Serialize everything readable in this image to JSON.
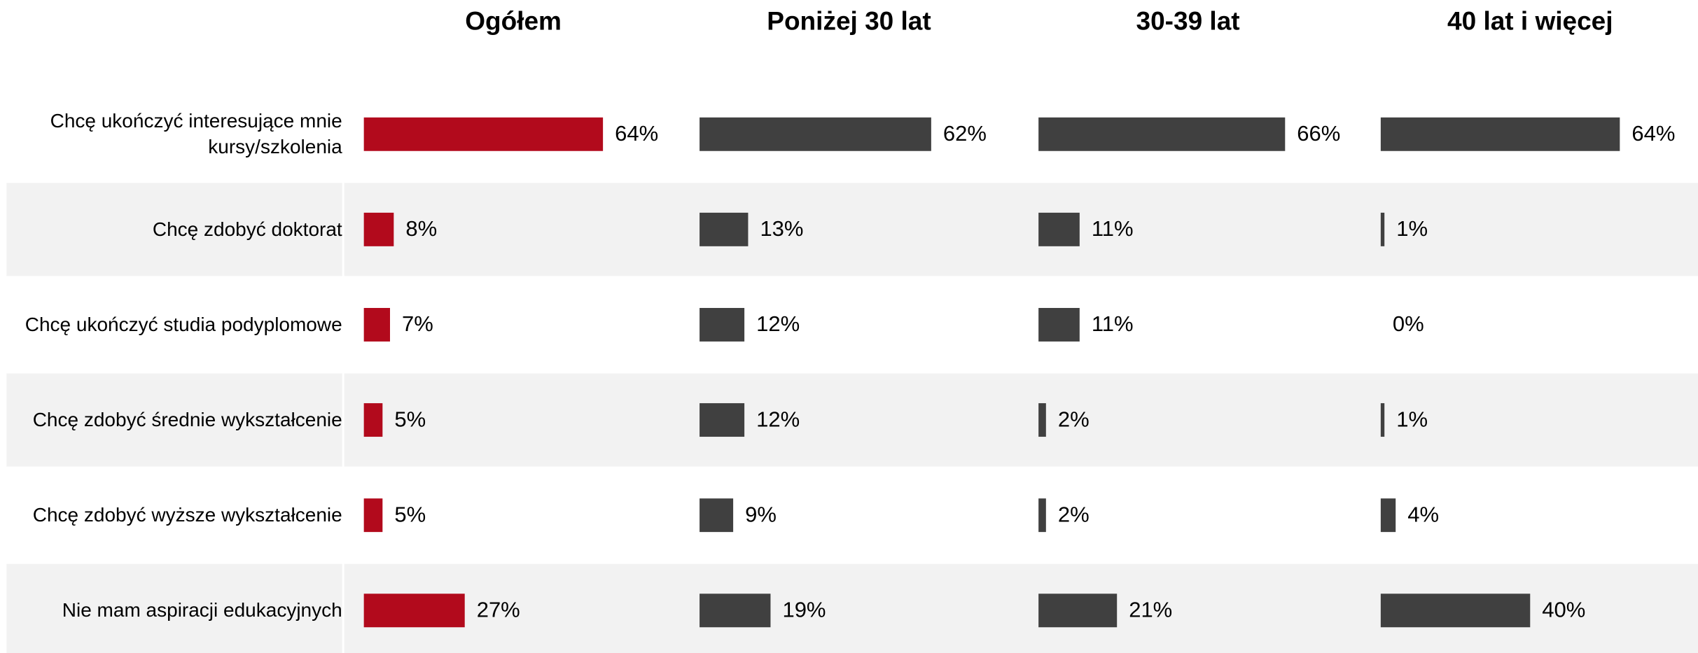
{
  "chart_data": {
    "type": "bar",
    "categories": [
      "Chcę ukończyć interesujące mnie kursy/szkolenia",
      "Chcę zdobyć doktorat",
      "Chcę ukończyć studia podyplomowe",
      "Chcę zdobyć średnie wykształcenie",
      "Chcę zdobyć wyższe wykształcenie",
      "Nie mam aspiracji edukacyjnych"
    ],
    "series": [
      {
        "name": "Ogółem",
        "color": "#b20a1c",
        "values": [
          64,
          8,
          7,
          5,
          5,
          27
        ],
        "value_labels": [
          "64%",
          "8%",
          "7%",
          "5%",
          "5%",
          "27%"
        ]
      },
      {
        "name": "Poniżej 30 lat",
        "color": "#404040",
        "values": [
          62,
          13,
          12,
          12,
          9,
          19
        ],
        "value_labels": [
          "62%",
          "13%",
          "12%",
          "12%",
          "9%",
          "19%"
        ]
      },
      {
        "name": "30-39 lat",
        "color": "#404040",
        "values": [
          66,
          11,
          11,
          2,
          2,
          21
        ],
        "value_labels": [
          "66%",
          "11%",
          "11%",
          "2%",
          "2%",
          "21%"
        ]
      },
      {
        "name": "40 lat i więcej",
        "color": "#404040",
        "values": [
          64,
          1,
          0,
          1,
          4,
          40
        ],
        "value_labels": [
          "64%",
          "1%",
          "0%",
          "1%",
          "4%",
          "40%"
        ]
      }
    ]
  }
}
